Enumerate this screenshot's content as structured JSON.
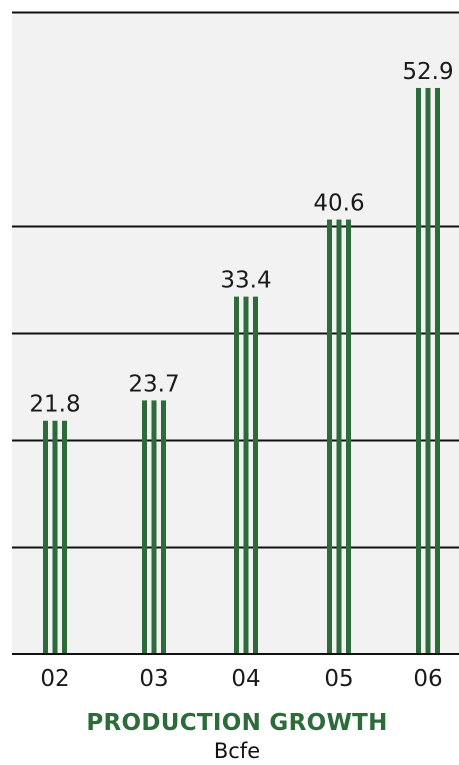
{
  "chart_data": {
    "type": "bar",
    "categories": [
      "02",
      "03",
      "04",
      "05",
      "06"
    ],
    "values": [
      21.8,
      23.7,
      33.4,
      40.6,
      52.9
    ],
    "value_labels": [
      "21.8",
      "23.7",
      "33.4",
      "40.6",
      "52.9"
    ],
    "title": "PRODUCTION GROWTH",
    "subtitle": "Bcfe",
    "xlabel": "",
    "ylabel": "",
    "ylim": [
      0,
      60
    ],
    "grid": true,
    "colors": {
      "bar": "#2e6b3a",
      "title": "#2e6b3a",
      "background": "#f2f2f2"
    }
  }
}
